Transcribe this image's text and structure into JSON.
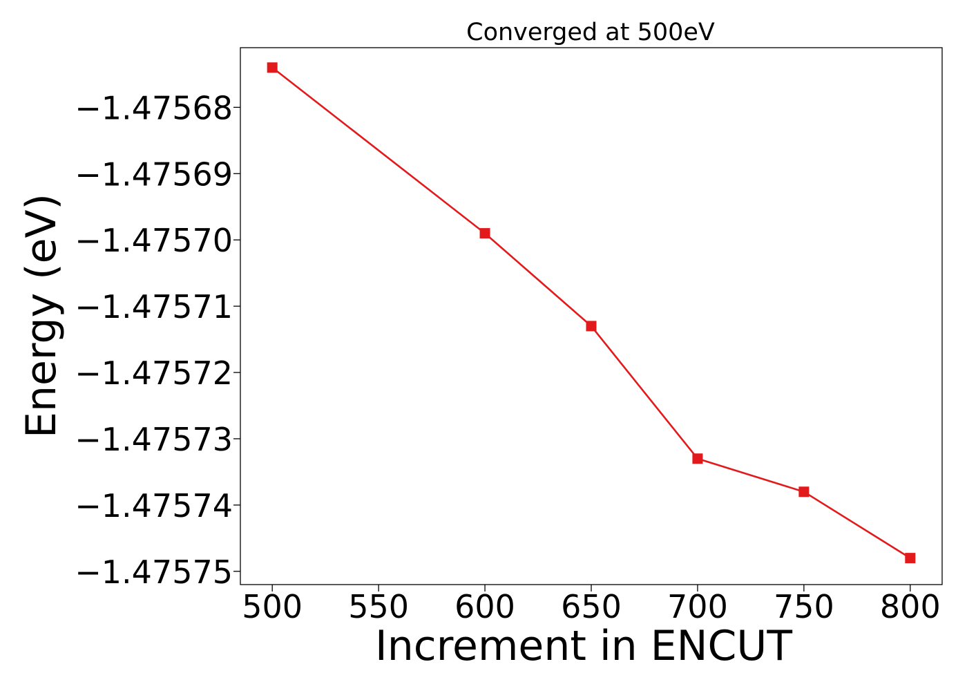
{
  "chart_data": {
    "type": "line",
    "title": "Converged at 500eV",
    "xlabel": "Increment in ENCUT",
    "ylabel": "Energy (eV)",
    "x": [
      500,
      600,
      650,
      700,
      750,
      800
    ],
    "series": [
      {
        "values": [
          -1.475674,
          -1.475699,
          -1.475713,
          -1.475733,
          -1.475738,
          -1.475748
        ],
        "color": "#e31a1c",
        "marker": "square"
      }
    ],
    "xticks": [
      500,
      550,
      600,
      650,
      700,
      750,
      800
    ],
    "xtick_labels": [
      "500",
      "550",
      "600",
      "650",
      "700",
      "750",
      "800"
    ],
    "yticks": [
      -1.47568,
      -1.47569,
      -1.4757,
      -1.47571,
      -1.47572,
      -1.47573,
      -1.47574,
      -1.47575
    ],
    "ytick_labels": [
      "−1.47568",
      "−1.47569",
      "−1.47570",
      "−1.47571",
      "−1.47572",
      "−1.47573",
      "−1.47574",
      "−1.47575"
    ],
    "xlim": [
      485,
      815
    ],
    "ylim": [
      -1.475752,
      -1.475671
    ],
    "grid": false,
    "legend": false
  }
}
